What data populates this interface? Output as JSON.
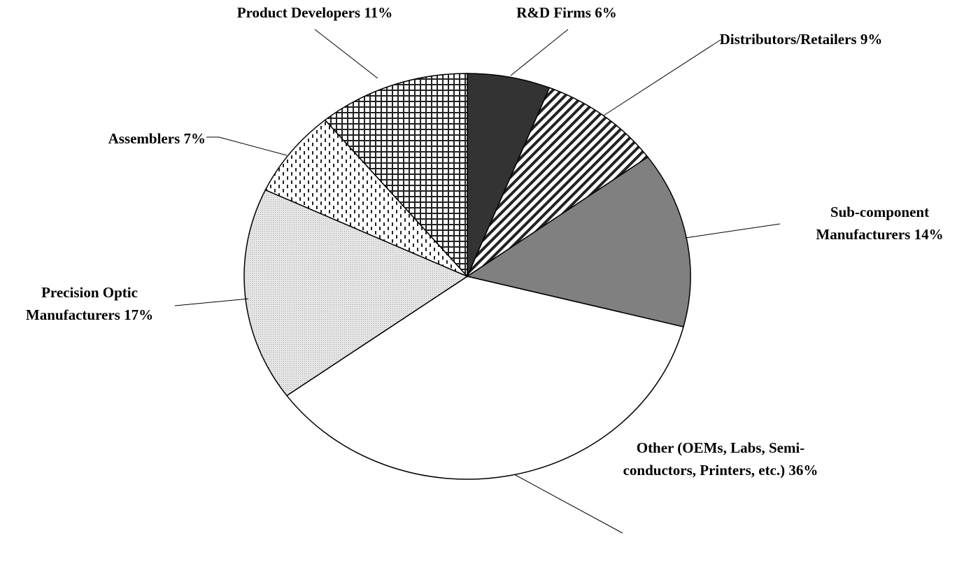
{
  "chart_data": {
    "type": "pie",
    "categories": [
      "R&D Firms",
      "Distributors/Retailers",
      "Sub-component Manufacturers",
      "Other (OEMs, Labs, Semi-conductors, Printers, etc.)",
      "Precision Optic Manufacturers",
      "Assemblers",
      "Product Developers"
    ],
    "values": [
      6,
      9,
      14,
      36,
      17,
      7,
      11
    ],
    "value_labels": [
      "6%",
      "9%",
      "14%",
      "36%",
      "17%",
      "7%",
      "11%"
    ],
    "colors": [
      "#333333",
      "url(#p-diag)",
      "#808080",
      "#ffffff",
      "url(#p-dots)",
      "url(#p-dash)",
      "url(#p-grid)"
    ]
  }
}
